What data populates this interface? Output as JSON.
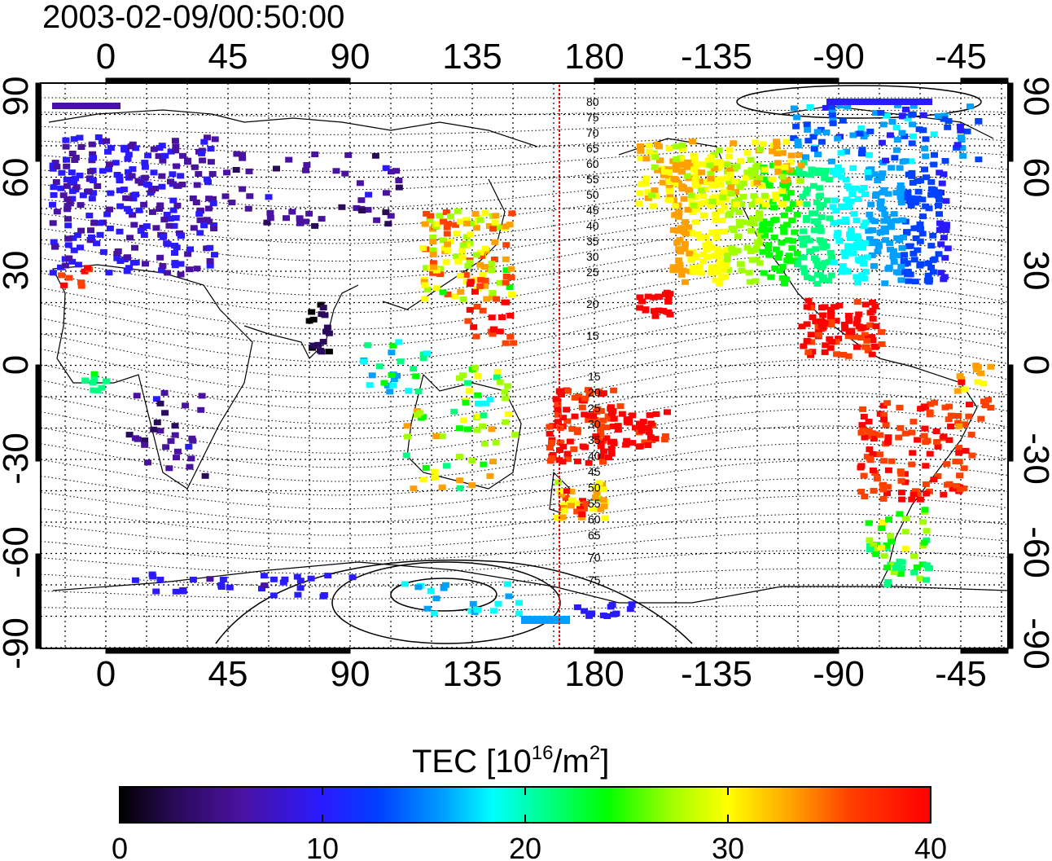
{
  "title": "2003-02-09/00:50:00",
  "map": {
    "top_lon_labels": [
      "0",
      "45",
      "90",
      "135",
      "180",
      "-135",
      "-90",
      "-45"
    ],
    "bottom_lon_labels": [
      "0",
      "45",
      "90",
      "135",
      "180",
      "-135",
      "-90",
      "-45"
    ],
    "left_lat_labels": [
      "90",
      "60",
      "30",
      "0",
      "-30",
      "-60",
      "-90"
    ],
    "right_lat_labels": [
      "90",
      "60",
      "30",
      "0",
      "-30",
      "-60",
      "-90"
    ],
    "contour_labels_north": [
      "80",
      "75",
      "70",
      "65",
      "60",
      "55",
      "50",
      "45",
      "40",
      "35",
      "30",
      "25",
      "20",
      "15"
    ],
    "contour_labels_south": [
      "15",
      "20",
      "25",
      "30",
      "35",
      "40",
      "45",
      "50",
      "55",
      "60",
      "65",
      "70",
      "75"
    ],
    "marker_line_color": "#ff0000"
  },
  "colorbar": {
    "label_main": "TEC  [10",
    "label_sup1": "16",
    "label_mid": "/m",
    "label_sup2": "2",
    "label_end": "]",
    "tick_labels": [
      "0",
      "10",
      "20",
      "30",
      "40"
    ],
    "range": [
      0,
      40
    ],
    "colors": [
      "#000000",
      "#2a0a5a",
      "#4a12a0",
      "#2a1aff",
      "#0040ff",
      "#00a0ff",
      "#00ffff",
      "#00ff80",
      "#00ff00",
      "#a0ff00",
      "#ffff00",
      "#ffa000",
      "#ff4000",
      "#ff0000"
    ]
  }
}
